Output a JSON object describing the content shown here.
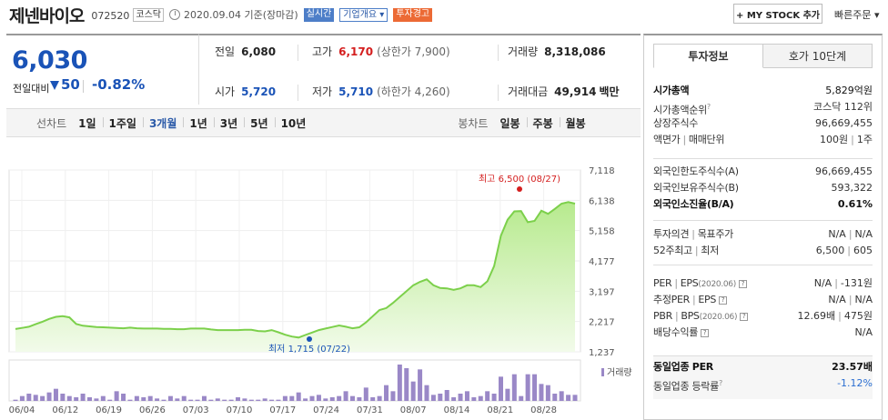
{
  "header": {
    "name": "제넨바이오",
    "code": "072520",
    "market": "코스닥",
    "date_text": "2020.09.04 기준(장마감)",
    "badge_realtime": "실시간",
    "badge_overview": "기업개요",
    "badge_warning": "투자경고",
    "my_stock_label": "+ MY STOCK 추가",
    "quick_order_label": "빠른주문"
  },
  "price": {
    "current": "6,030",
    "prev_label": "전일대비",
    "change": "50",
    "rate": "-0.82%"
  },
  "stats": {
    "prev_close": {
      "label": "전일",
      "value": "6,080"
    },
    "high": {
      "label": "고가",
      "value": "6,170",
      "sub": "(상한가 7,900)"
    },
    "volume": {
      "label": "거래량",
      "value": "8,318,086"
    },
    "open": {
      "label": "시가",
      "value": "5,720"
    },
    "low": {
      "label": "저가",
      "value": "5,710",
      "sub": "(하한가 4,260)"
    },
    "amount": {
      "label": "거래대금",
      "value": "49,914",
      "unit": "백만"
    }
  },
  "period": {
    "line_label": "선차트",
    "line_items": [
      "1일",
      "1주일",
      "3개월",
      "1년",
      "3년",
      "5년",
      "10년"
    ],
    "selected": "3개월",
    "candle_label": "봉차트",
    "candle_items": [
      "일봉",
      "주봉",
      "월봉"
    ]
  },
  "chart_data": {
    "type": "area",
    "y_ticks": [
      "7,118",
      "6,138",
      "5,158",
      "4,177",
      "3,197",
      "2,217",
      "1,237"
    ],
    "ylim": [
      1237,
      7118
    ],
    "x_ticks": [
      "06/04",
      "06/12",
      "06/19",
      "06/26",
      "07/03",
      "07/10",
      "07/17",
      "07/24",
      "07/31",
      "08/07",
      "08/14",
      "08/21",
      "08/28"
    ],
    "high_label": "최고 6,500 (08/27)",
    "low_label": "최저 1,715 (07/22)",
    "volume_legend": "거래량",
    "prices": [
      1975,
      2010,
      2050,
      2130,
      2210,
      2300,
      2370,
      2390,
      2350,
      2140,
      2080,
      2060,
      2040,
      2030,
      2020,
      2010,
      2000,
      2020,
      2000,
      1990,
      1990,
      1990,
      1980,
      1980,
      1970,
      1970,
      1990,
      1990,
      1990,
      1960,
      1940,
      1940,
      1940,
      1940,
      1950,
      1950,
      1910,
      1900,
      1940,
      1870,
      1790,
      1730,
      1700,
      1780,
      1860,
      1940,
      1990,
      2040,
      2090,
      2050,
      2000,
      2030,
      2190,
      2390,
      2590,
      2650,
      2820,
      3010,
      3200,
      3390,
      3500,
      3580,
      3390,
      3300,
      3290,
      3240,
      3290,
      3390,
      3390,
      3330,
      3520,
      4010,
      4990,
      5510,
      5780,
      5790,
      5430,
      5470,
      5800,
      5700,
      5860,
      6030,
      6080,
      6030
    ],
    "volumes": [
      1,
      4,
      6,
      5,
      4,
      7,
      10,
      6,
      4,
      3,
      6,
      3,
      2,
      4,
      1,
      8,
      6,
      1,
      4,
      3,
      4,
      2,
      1,
      4,
      2,
      4,
      1,
      1,
      4,
      1,
      2,
      1,
      1,
      3,
      2,
      1,
      1,
      2,
      1,
      1,
      4,
      4,
      7,
      2,
      4,
      5,
      2,
      3,
      4,
      8,
      4,
      3,
      11,
      3,
      4,
      13,
      8,
      30,
      27,
      16,
      26,
      13,
      5,
      6,
      9,
      3,
      6,
      8,
      3,
      4,
      8,
      6,
      20,
      10,
      22,
      4,
      22,
      22,
      14,
      13,
      6,
      8,
      5,
      5
    ]
  },
  "right_panel": {
    "tab_info": "투자정보",
    "tab_quote": "호가 10단계",
    "market_cap": {
      "label": "시가총액",
      "value": "5,829억원"
    },
    "market_cap_rank": {
      "label": "시가총액순위",
      "value": "코스닥 112위"
    },
    "shares": {
      "label": "상장주식수",
      "value": "96,669,455"
    },
    "face": {
      "label": "액면가",
      "label2": "매매단위",
      "value": "100원",
      "value2": "1주"
    },
    "foreign_limit": {
      "label": "외국인한도주식수(A)",
      "value": "96,669,455"
    },
    "foreign_hold": {
      "label": "외국인보유주식수(B)",
      "value": "593,322"
    },
    "foreign_rate": {
      "label": "외국인소진율(B/A)",
      "value": "0.61%"
    },
    "opinion": {
      "label": "투자의견",
      "label2": "목표주가",
      "value": "N/A",
      "value2": "N/A"
    },
    "week52": {
      "label": "52주최고",
      "label2": "최저",
      "value": "6,500",
      "value2": "605"
    },
    "per_eps": {
      "label": "PER",
      "label2": "EPS",
      "note": "(2020.06)",
      "value": "N/A",
      "value2": "-131원"
    },
    "est_per_eps": {
      "label": "추정PER",
      "label2": "EPS",
      "value": "N/A",
      "value2": "N/A"
    },
    "pbr_bps": {
      "label": "PBR",
      "label2": "BPS",
      "note": "(2020.06)",
      "value": "12.69배",
      "value2": "475원"
    },
    "div_yield": {
      "label": "배당수익률",
      "value": "N/A"
    },
    "sector_per": {
      "label": "동일업종 PER",
      "value": "23.57배"
    },
    "sector_rate": {
      "label": "동일업종 등락률",
      "value": "-1.12%"
    }
  }
}
